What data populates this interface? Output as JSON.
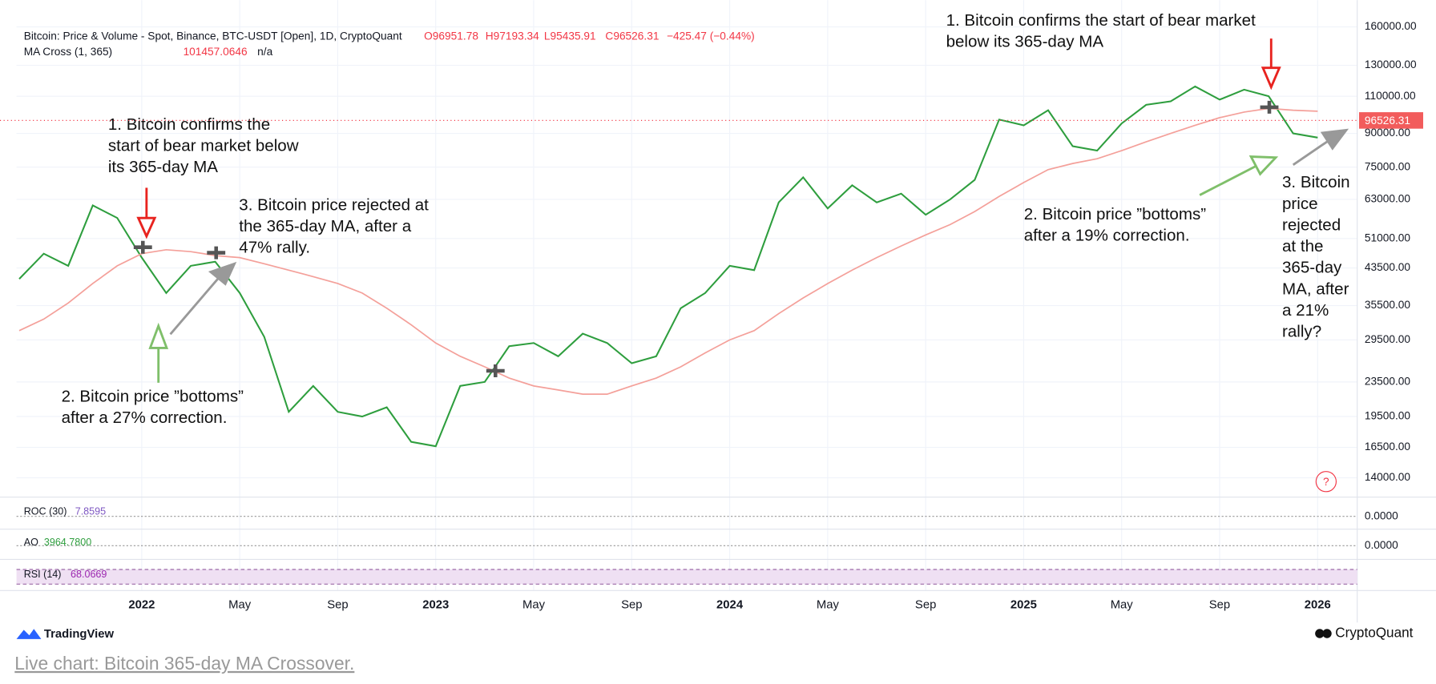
{
  "header": {
    "open": "O96951.78",
    "high": "H97193.34",
    "low": "L95435.91",
    "close": "C96526.31",
    "change": "−425.47 (−0.44%)",
    "ma_value": "101457.0646",
    "ma_extra": "n/a"
  },
  "chart_data": {
    "type": "line",
    "y_scale": "log",
    "grid": true,
    "categories": [
      null,
      null,
      null,
      null,
      null,
      "2022",
      null,
      null,
      null,
      "May",
      null,
      null,
      null,
      "Sep",
      null,
      null,
      null,
      "2023",
      null,
      null,
      null,
      "May",
      null,
      null,
      null,
      "Sep",
      null,
      null,
      null,
      "2024",
      null,
      null,
      null,
      "May",
      null,
      null,
      null,
      "Sep",
      null,
      null,
      null,
      "2025",
      null,
      null,
      null,
      "May",
      null,
      null,
      null,
      "Sep",
      null,
      null,
      null,
      "2026"
    ],
    "series": [
      {
        "name": "Bitcoin: Price & Volume - Spot, Binance, BTC-USDT [Open], 1D, CryptoQuant",
        "color": "#2e9e3e",
        "values": [
          41000,
          47000,
          44000,
          61000,
          57000,
          46000,
          38000,
          44000,
          45000,
          38000,
          30000,
          20000,
          23000,
          20000,
          19500,
          20500,
          17000,
          16600,
          23000,
          23500,
          28500,
          29000,
          27000,
          30500,
          29000,
          26000,
          27000,
          35000,
          38000,
          44000,
          43000,
          62000,
          71000,
          60000,
          68000,
          62000,
          65000,
          58000,
          63000,
          70000,
          97000,
          94000,
          102000,
          84000,
          82000,
          95000,
          105000,
          107000,
          116000,
          108000,
          114000,
          110000,
          90000,
          88000
        ]
      },
      {
        "name": "MA Cross (1, 365)",
        "color": "#f4a09a",
        "values": [
          31000,
          33000,
          36000,
          40000,
          44000,
          47000,
          48000,
          47500,
          46500,
          46000,
          44500,
          43000,
          41500,
          40000,
          38000,
          35000,
          32000,
          29000,
          27000,
          25500,
          24000,
          23000,
          22500,
          22000,
          22000,
          23000,
          24000,
          25500,
          27500,
          29500,
          31000,
          34000,
          37000,
          40000,
          43000,
          46000,
          49000,
          52000,
          55000,
          59000,
          64000,
          69000,
          74000,
          76500,
          78500,
          82000,
          86000,
          90000,
          94000,
          98000,
          101000,
          103000,
          102000,
          101457
        ]
      }
    ],
    "last_price": 96526.31,
    "ylim": [
      12800,
      170000
    ],
    "yticks": [
      {
        "value": 14000,
        "label": "14000.00"
      },
      {
        "value": 16500,
        "label": "16500.00"
      },
      {
        "value": 19500,
        "label": "19500.00"
      },
      {
        "value": 23500,
        "label": "23500.00"
      },
      {
        "value": 29500,
        "label": "29500.00"
      },
      {
        "value": 35500,
        "label": "35500.00"
      },
      {
        "value": 43500,
        "label": "43500.00"
      },
      {
        "value": 51000,
        "label": "51000.00"
      },
      {
        "value": 63000,
        "label": "63000.00"
      },
      {
        "value": 75000,
        "label": "75000.00"
      },
      {
        "value": 90000,
        "label": "90000.00"
      },
      {
        "value": 110000,
        "label": "110000.00"
      },
      {
        "value": 130000,
        "label": "130000.00"
      },
      {
        "value": 160000,
        "label": "160000.00"
      }
    ],
    "annotations": [
      {
        "lines": [
          "1. Bitcoin confirms the",
          "start of bear market below",
          "its 365-day MA"
        ]
      },
      {
        "lines": [
          "2. Bitcoin price ”bottoms”",
          "after a 27% correction."
        ]
      },
      {
        "lines": [
          "3. Bitcoin price rejected at",
          "the 365-day MA, after a",
          "47% rally."
        ]
      },
      {
        "lines": [
          "1. Bitcoin confirms the start of bear market",
          "below its 365-day MA"
        ]
      },
      {
        "lines": [
          "2. Bitcoin price ”bottoms”",
          "after a 19% correction."
        ]
      },
      {
        "lines": [
          "3. Bitcoin",
          "price",
          "rejected",
          "at the",
          "365-day",
          "MA, after",
          "a 21%",
          "rally?"
        ]
      }
    ],
    "indicators": [
      {
        "label": "ROC (30)",
        "value": "7.8595",
        "axis": "0.0000"
      },
      {
        "label": "AO",
        "value": "3964.7800",
        "axis": "0.0000"
      },
      {
        "label": "RSI (14)",
        "value": "68.0669"
      }
    ]
  },
  "footer": {
    "left": "TradingView",
    "right": "CryptoQuant",
    "link": "Live chart: Bitcoin 365-day MA Crossover."
  }
}
